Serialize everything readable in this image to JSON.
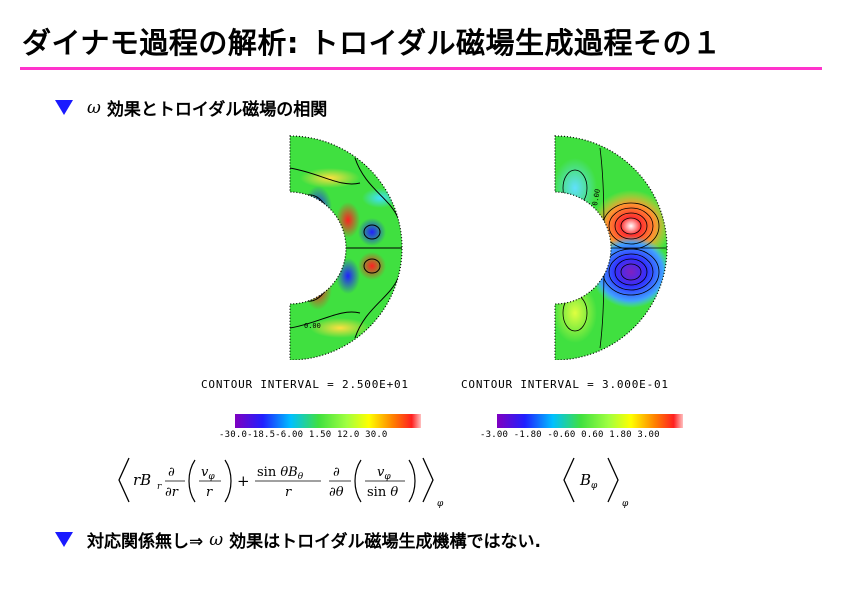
{
  "slide": {
    "title": "ダイナモ過程の解析: トロイダル磁場生成過程その１",
    "bullet1": {
      "omega": "ω",
      "text": "効果とトロイダル磁場の相関"
    },
    "bullet2": {
      "prefix": "対応関係無し⇒",
      "omega": "ω",
      "text": "効果はトロイダル磁場生成機構ではない."
    }
  },
  "plots": {
    "left": {
      "contour_interval": "CONTOUR  INTERVAL = 2.500E+01",
      "colorbar_ticks": "-30.0-18.5-6.00 1.50 12.0    30.0",
      "inline_label": "0.00"
    },
    "right": {
      "contour_interval": "CONTOUR  INTERVAL = 3.000E-01",
      "colorbar_ticks": "-3.00 -1.80 -0.60 0.60  1.80  3.00",
      "inline_label": "0.00"
    }
  },
  "colors": {
    "title_rule": "#ff33cc",
    "bullet": "#1a1aff"
  }
}
